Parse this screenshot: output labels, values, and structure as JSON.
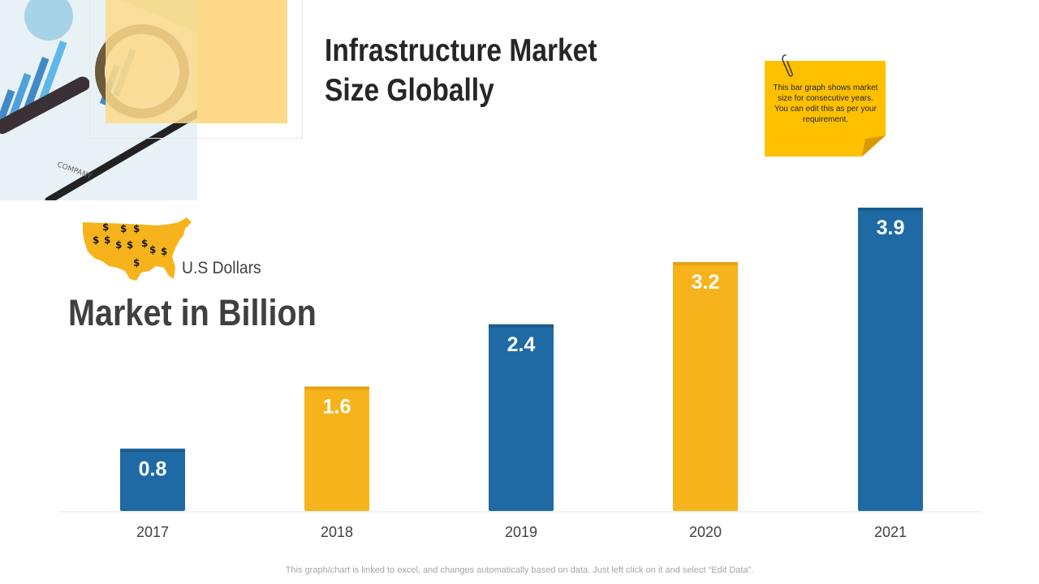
{
  "title": "Infrastructure Market Size Globally",
  "note": "This bar graph shows market size for consecutive years. You can edit this as per your requirement.",
  "unit_label": "U.S Dollars",
  "subtitle": "Market in Billion",
  "footnote": "This graph/chart is linked to excel, and changes automatically based on data. Just left click on it and select “Edit Data”.",
  "colors": {
    "blue": "#1f6aa5",
    "yellow": "#f6b31b",
    "sticky": "#ffc000"
  },
  "chart_data": {
    "type": "bar",
    "categories": [
      "2017",
      "2018",
      "2019",
      "2020",
      "2021"
    ],
    "values": [
      0.8,
      1.6,
      2.4,
      3.2,
      3.9
    ],
    "bar_colors": [
      "#1f6aa5",
      "#f6b31b",
      "#1f6aa5",
      "#f6b31b",
      "#1f6aa5"
    ],
    "data_labels": [
      "0.8",
      "1.6",
      "2.4",
      "3.2",
      "3.9"
    ],
    "ylim": [
      0,
      4
    ],
    "grid": false,
    "legend": "none"
  }
}
